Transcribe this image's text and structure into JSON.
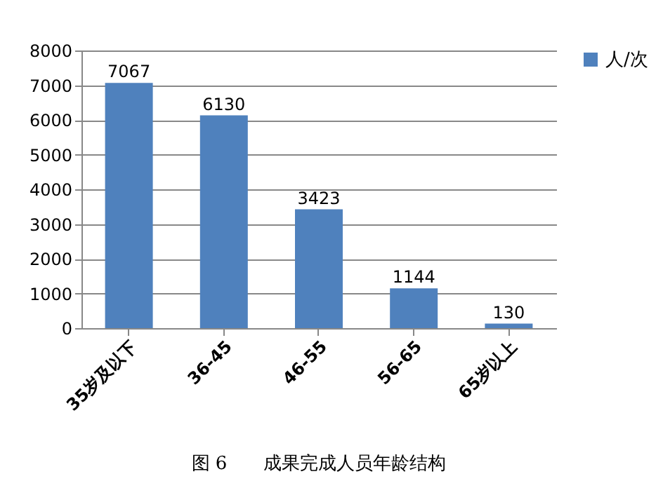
{
  "chart_data": {
    "type": "bar",
    "title": "图 6　　成果完成人员年龄结构",
    "categories": [
      "35岁及以下",
      "36-45",
      "46-55",
      "56-65",
      "65岁以上"
    ],
    "series": [
      {
        "name": "人/次",
        "color": "#4f81bd",
        "values": [
          7067,
          6130,
          3423,
          1144,
          130
        ]
      }
    ],
    "ylim": [
      0,
      8000
    ],
    "yticks": [
      0,
      1000,
      2000,
      3000,
      4000,
      5000,
      6000,
      7000,
      8000
    ],
    "grid": "y",
    "legend": "right",
    "data_labels": true
  }
}
